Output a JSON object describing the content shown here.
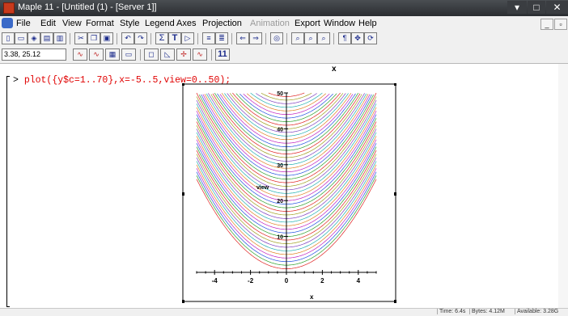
{
  "window": {
    "title": "Maple 11 - [Untitled (1) - [Server 1]]"
  },
  "menu": {
    "items": [
      "File",
      "Edit",
      "View",
      "Format",
      "Style",
      "Legend",
      "Axes",
      "Projection",
      "Animation",
      "Export",
      "Window",
      "Help"
    ],
    "disabled": [
      "Animation"
    ]
  },
  "toolbar": {
    "coordinates": "3.38, 25.12",
    "sigma": "Σ",
    "text_t": "T",
    "scale_label": "11"
  },
  "worksheet": {
    "prompt": ">",
    "command": "plot({y$c=1..70},x=-5..5,view=0..50);"
  },
  "plot": {
    "x_axis_label": "x",
    "y_axis_label": "view",
    "title_x": "x"
  },
  "chart_data": {
    "type": "line",
    "title": "",
    "xlabel": "x",
    "ylabel": "view",
    "xlim": [
      -5,
      5
    ],
    "ylim": [
      0,
      50
    ],
    "x_ticks": [
      "-4",
      "-2",
      "0",
      "2",
      "4"
    ],
    "y_ticks": [
      "10",
      "20",
      "30",
      "40",
      "50"
    ],
    "family": "y = x^2 + c",
    "c_range": [
      1,
      70
    ],
    "series_count": 70
  },
  "status": {
    "time": "Time: 6.4s",
    "bytes": "Bytes: 4.12M",
    "available": "Available: 3.28G"
  },
  "colors": {
    "command": "#e00000",
    "titlebar": "#3a3d41"
  }
}
